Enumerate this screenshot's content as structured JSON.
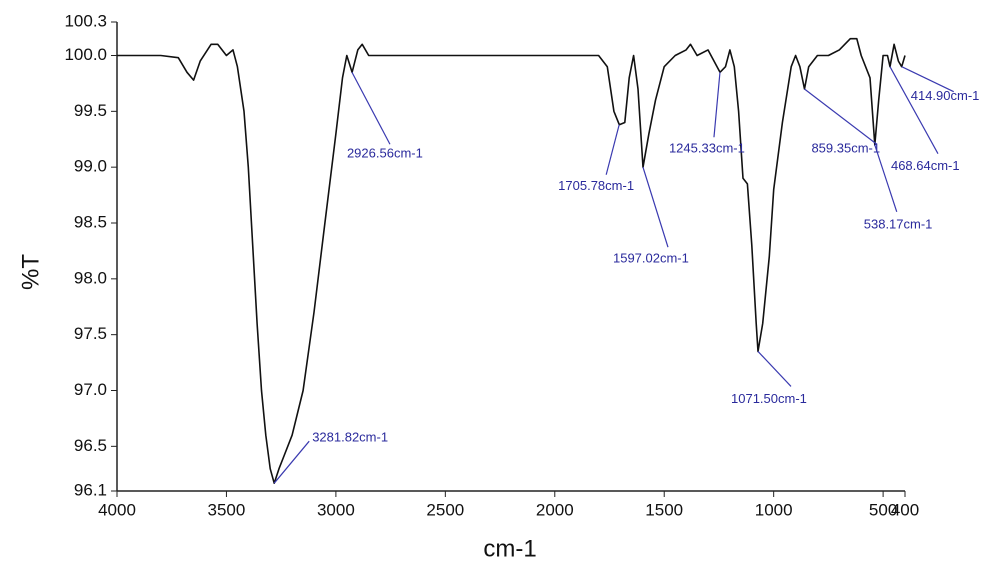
{
  "chart_data": {
    "type": "line",
    "x_label": "cm-1",
    "y_label": "%T",
    "xlim": [
      4000,
      400
    ],
    "ylim": [
      96.1,
      100.3
    ],
    "xticks": [
      4000,
      3500,
      3000,
      2500,
      2000,
      1500,
      1000,
      500,
      400
    ],
    "yticks": [
      100.3,
      {
        "value": 100,
        "label": "100.0"
      },
      99.5,
      {
        "value": 99,
        "label": "99.0"
      },
      98.5,
      {
        "value": 98,
        "label": "98.0"
      },
      97.5,
      {
        "value": 97,
        "label": "97.0"
      },
      96.5,
      96.1
    ],
    "color": "#111111",
    "x": [
      4000,
      3800,
      3720,
      3680,
      3650,
      3620,
      3570,
      3540,
      3500,
      3470,
      3450,
      3420,
      3400,
      3380,
      3360,
      3340,
      3320,
      3300,
      3282,
      3260,
      3240,
      3200,
      3150,
      3100,
      3050,
      3000,
      2970,
      2950,
      2926,
      2900,
      2880,
      2850,
      2800,
      2500,
      2200,
      1900,
      1800,
      1760,
      1730,
      1705,
      1680,
      1660,
      1640,
      1620,
      1597,
      1570,
      1540,
      1500,
      1450,
      1400,
      1380,
      1350,
      1300,
      1245,
      1220,
      1200,
      1180,
      1160,
      1140,
      1120,
      1100,
      1080,
      1071.5,
      1050,
      1020,
      1000,
      960,
      920,
      900,
      880,
      859,
      840,
      800,
      750,
      700,
      650,
      620,
      600,
      560,
      538,
      520,
      500,
      480,
      468.64,
      450,
      430,
      414.9,
      400
    ],
    "values": [
      100.0,
      100.0,
      99.98,
      99.85,
      99.78,
      99.95,
      100.1,
      100.1,
      100.0,
      100.05,
      99.9,
      99.5,
      99.0,
      98.3,
      97.6,
      97.0,
      96.6,
      96.3,
      96.17,
      96.3,
      96.4,
      96.6,
      97.0,
      97.7,
      98.5,
      99.3,
      99.8,
      100.0,
      99.85,
      100.05,
      100.1,
      100.0,
      100.0,
      100.0,
      100.0,
      100.0,
      100.0,
      99.9,
      99.5,
      99.38,
      99.4,
      99.8,
      100.0,
      99.7,
      99.0,
      99.3,
      99.6,
      99.9,
      100.0,
      100.05,
      100.1,
      100.0,
      100.05,
      99.85,
      99.9,
      100.05,
      99.9,
      99.5,
      98.9,
      98.85,
      98.3,
      97.6,
      97.35,
      97.6,
      98.2,
      98.8,
      99.4,
      99.9,
      100.0,
      99.9,
      99.7,
      99.9,
      100.0,
      100.0,
      100.05,
      100.15,
      100.15,
      100.0,
      99.8,
      99.2,
      99.6,
      100.0,
      100.0,
      99.9,
      100.1,
      99.95,
      99.9,
      100.0
    ],
    "annotations": [
      {
        "text": "3281.82cm-1",
        "x": 3281.82,
        "y": 96.17
      },
      {
        "text": "2926.56cm-1",
        "x": 2926.56,
        "y": 99.85
      },
      {
        "text": "1705.78cm-1",
        "x": 1705.78,
        "y": 99.38
      },
      {
        "text": "1597.02cm-1",
        "x": 1597.02,
        "y": 99.0
      },
      {
        "text": "1245.33cm-1",
        "x": 1245.33,
        "y": 99.85
      },
      {
        "text": "1071.50cm-1",
        "x": 1071.5,
        "y": 97.35
      },
      {
        "text": "859.35cm-1",
        "x": 859.35,
        "y": 99.7
      },
      {
        "text": "538.17cm-1",
        "x": 538.17,
        "y": 99.2
      },
      {
        "text": "468.64cm-1",
        "x": 468.64,
        "y": 99.9
      },
      {
        "text": "414.90cm-1",
        "x": 414.9,
        "y": 99.9
      }
    ]
  }
}
